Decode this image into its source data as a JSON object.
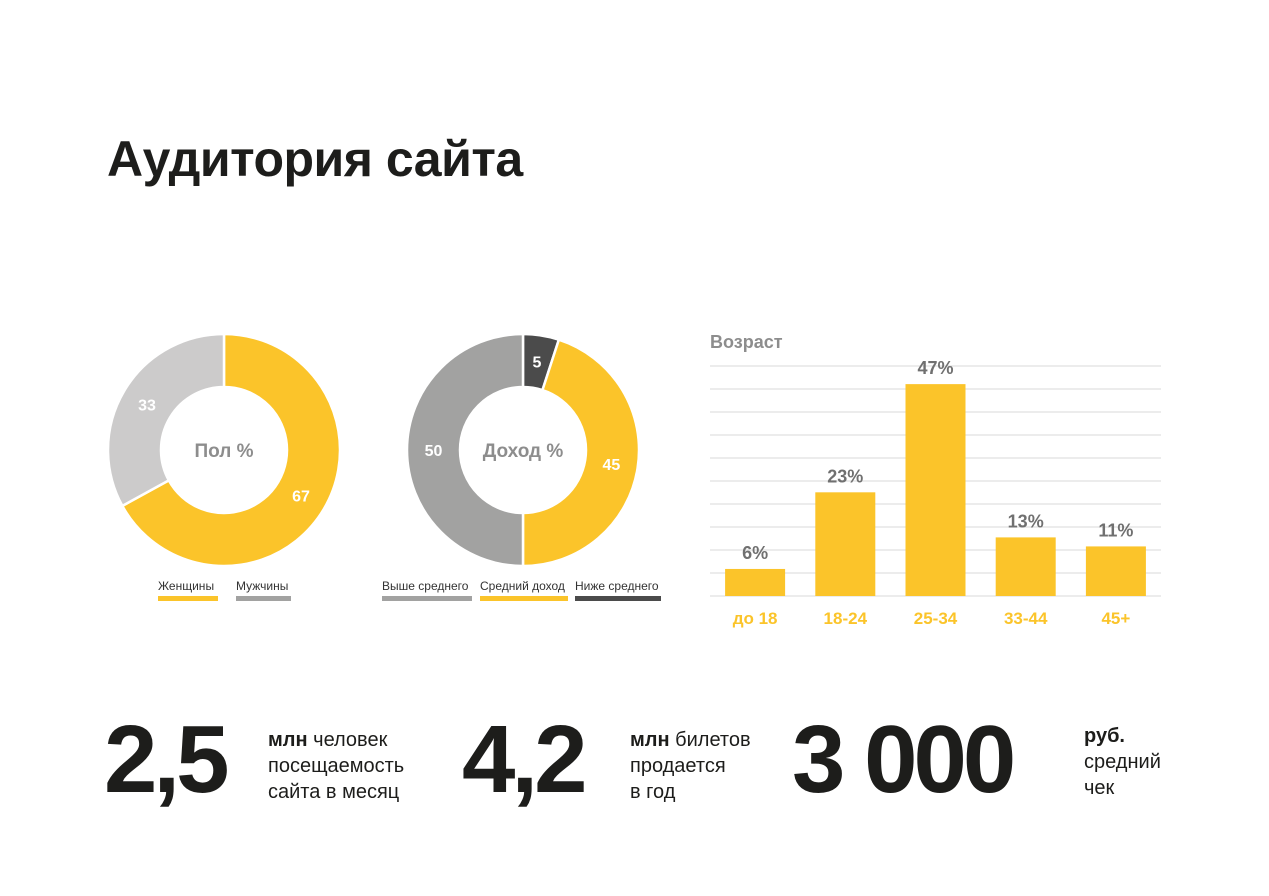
{
  "title": "Аудитория сайта",
  "colors": {
    "yellow": "#fbc42a",
    "light_gray": "#cccbcb",
    "mid_gray": "#a2a2a1",
    "dark_gray": "#4b4b4b",
    "label_gray": "#8d8d8d",
    "grid": "#d8d8d8"
  },
  "chart_data": [
    {
      "type": "pie",
      "title": "Пол %",
      "slices": [
        {
          "label": "Женщины",
          "value": 67,
          "color": "#fbc42a"
        },
        {
          "label": "Мужчины",
          "value": 33,
          "color": "#cccbcb"
        }
      ],
      "legend": [
        {
          "label": "Женщины",
          "color": "#fbc42a"
        },
        {
          "label": "Мужчины",
          "color": "#a2a2a1"
        }
      ]
    },
    {
      "type": "pie",
      "title": "Доход %",
      "slices": [
        {
          "label": "Ниже среднего",
          "value": 5,
          "color": "#4b4b4b"
        },
        {
          "label": "Средний доход",
          "value": 45,
          "color": "#fbc42a"
        },
        {
          "label": "Выше среднего",
          "value": 50,
          "color": "#a2a2a1"
        }
      ],
      "legend": [
        {
          "label": "Выше среднего",
          "color": "#a2a2a1"
        },
        {
          "label": "Средний доход",
          "color": "#fbc42a"
        },
        {
          "label": "Ниже среднего",
          "color": "#4b4b4b"
        }
      ]
    },
    {
      "type": "bar",
      "title": "Возраст",
      "categories": [
        "до 18",
        "18-24",
        "25-34",
        "33-44",
        "45+"
      ],
      "values": [
        6,
        23,
        47,
        13,
        11
      ],
      "value_labels": [
        "6%",
        "23%",
        "47%",
        "13%",
        "11%"
      ],
      "ylim": [
        0,
        50
      ],
      "grid": true,
      "color": "#fbc42a"
    }
  ],
  "stats": [
    {
      "number": "2,5",
      "bold": "млн",
      "line1": "человек",
      "line2": "посещаемость",
      "line3": "сайта в месяц"
    },
    {
      "number": "4,2",
      "bold": "млн",
      "line1": "билетов",
      "line2": "продается",
      "line3": "в год"
    },
    {
      "number": "3 000",
      "bold": "руб.",
      "line1": "",
      "line2": "средний",
      "line3": "чек"
    }
  ]
}
